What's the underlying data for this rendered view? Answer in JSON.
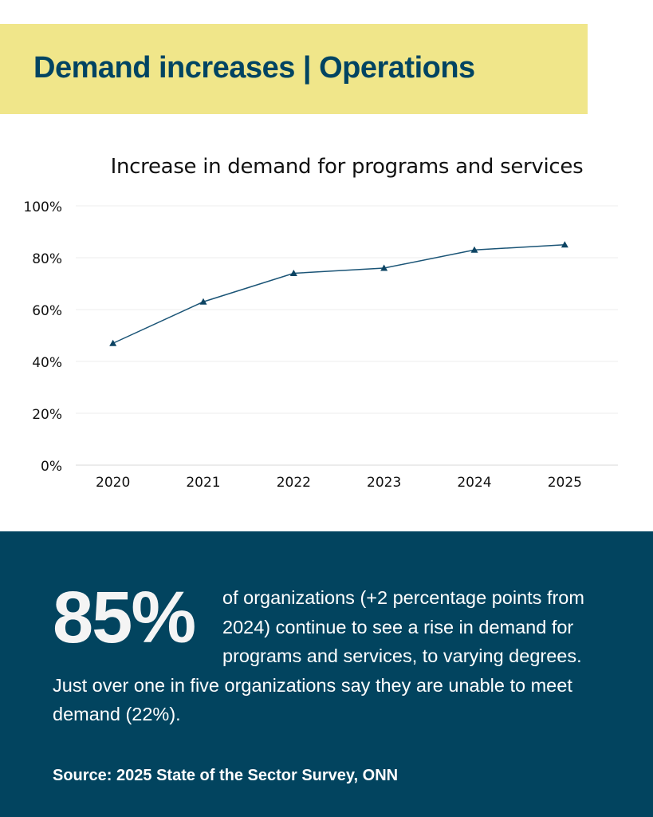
{
  "header": {
    "title": "Demand increases | Operations",
    "banner_color": "#f0e68a",
    "title_color": "#014462"
  },
  "chart_data": {
    "type": "line",
    "title": "Increase in demand for programs and services",
    "xlabel": "",
    "ylabel": "",
    "categories": [
      "2020",
      "2021",
      "2022",
      "2023",
      "2024",
      "2025"
    ],
    "series": [
      {
        "name": "Increase in demand",
        "values": [
          47,
          63,
          74,
          76,
          83,
          85
        ],
        "color": "#1a5476",
        "marker": "triangle"
      }
    ],
    "ylim": [
      0,
      100
    ],
    "yticks": [
      0,
      20,
      40,
      60,
      80,
      100
    ],
    "ytick_labels": [
      "0%",
      "20%",
      "40%",
      "60%",
      "80%",
      "100%"
    ],
    "grid": true,
    "legend": "none"
  },
  "highlight": {
    "stat": "85%",
    "text": "of organizations (+2 percentage points from 2024) continue to see a rise in demand for programs and services, to varying degrees. Just over one in five organizations say they are unable to meet demand (22%).",
    "panel_color": "#02445f"
  },
  "footer": {
    "source": "Source: 2025 State of the Sector Survey, ONN"
  }
}
